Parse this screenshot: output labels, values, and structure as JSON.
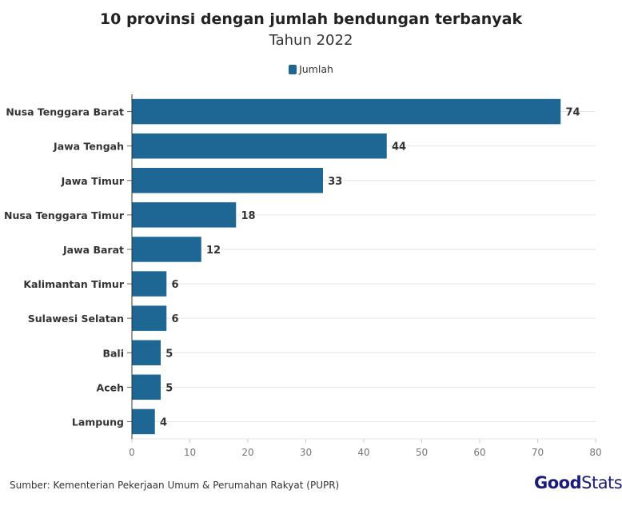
{
  "chart_data": {
    "type": "bar",
    "orientation": "horizontal",
    "title": "10 provinsi dengan jumlah bendungan terbanyak",
    "subtitle": "Tahun 2022",
    "categories": [
      "Nusa Tenggara Barat",
      "Jawa Tengah",
      "Jawa Timur",
      "Nusa Tenggara Timur",
      "Jawa Barat",
      "Kalimantan Timur",
      "Sulawesi Selatan",
      "Bali",
      "Aceh",
      "Lampung"
    ],
    "series": [
      {
        "name": "Jumlah",
        "values": [
          74,
          44,
          33,
          18,
          12,
          6,
          6,
          5,
          5,
          4
        ],
        "color": "#1e6694"
      }
    ],
    "xlim": [
      0,
      80
    ],
    "xticks": [
      0,
      10,
      20,
      30,
      40,
      50,
      60,
      70,
      80
    ],
    "grid": true,
    "legend_position": "top"
  },
  "source": "Sumber: Kementerian Pekerjaan Umum & Perumahan Rakyat (PUPR)",
  "logo": {
    "bold": "Good",
    "regular": "Stats",
    "color": "#1b1b7a"
  }
}
